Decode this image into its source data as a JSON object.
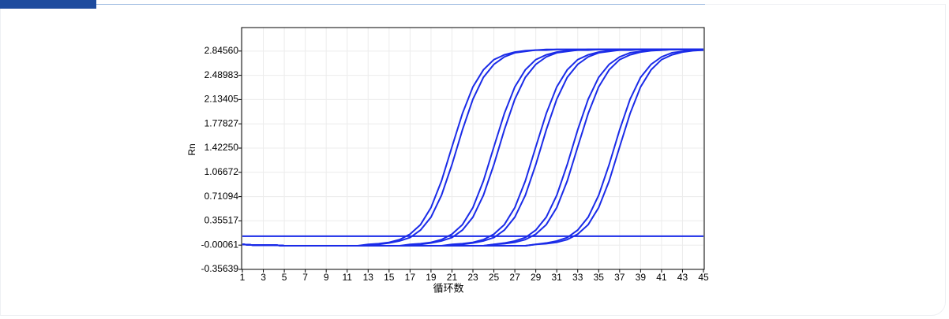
{
  "chart_data": {
    "type": "line",
    "y_label": "Rn",
    "x_label": "循环数",
    "color": "#1a2be8",
    "grid": true,
    "x": [
      1,
      2,
      3,
      4,
      5,
      6,
      7,
      8,
      9,
      10,
      11,
      12,
      13,
      14,
      15,
      16,
      17,
      18,
      19,
      20,
      21,
      22,
      23,
      24,
      25,
      26,
      27,
      28,
      29,
      30,
      31,
      32,
      33,
      34,
      35,
      36,
      37,
      38,
      39,
      40,
      41,
      42,
      43,
      44,
      45
    ],
    "xlim": [
      1,
      45
    ],
    "xticks": [
      1,
      3,
      5,
      7,
      9,
      11,
      13,
      15,
      17,
      19,
      21,
      23,
      25,
      27,
      29,
      31,
      33,
      35,
      37,
      39,
      41,
      43,
      45
    ],
    "ylim": [
      -0.35639,
      3.19
    ],
    "yticks": [
      -0.35639,
      -0.00061,
      0.35517,
      0.71094,
      1.06672,
      {
        "value": 1.4225,
        "label": "1.42250"
      },
      1.77827,
      2.13405,
      2.48983,
      {
        "value": 2.8456,
        "label": "2.84560"
      }
    ],
    "threshold": 0.13,
    "series": [
      {
        "values": [
          0.01,
          0,
          0,
          0,
          -0.01,
          -0.01,
          -0.01,
          -0.01,
          -0.01,
          -0.01,
          -0.01,
          -0.01,
          0.01,
          0.02,
          0.04,
          0.08,
          0.16,
          0.3,
          0.55,
          0.94,
          1.44,
          1.93,
          2.32,
          2.57,
          2.72,
          2.79,
          2.83,
          2.85,
          2.86,
          2.87,
          2.87,
          2.87,
          2.87,
          2.87,
          2.87,
          2.87,
          2.87,
          2.87,
          2.87,
          2.87,
          2.87,
          2.87,
          2.87,
          2.87,
          2.87
        ]
      },
      {
        "values": [
          0.01,
          0,
          0,
          0,
          -0.01,
          -0.01,
          -0.01,
          -0.01,
          -0.01,
          -0.01,
          -0.01,
          -0.01,
          -0.01,
          0.01,
          0.03,
          0.06,
          0.11,
          0.22,
          0.41,
          0.73,
          1.18,
          1.69,
          2.14,
          2.46,
          2.65,
          2.76,
          2.82,
          2.84,
          2.86,
          2.86,
          2.87,
          2.87,
          2.87,
          2.87,
          2.87,
          2.87,
          2.87,
          2.87,
          2.87,
          2.87,
          2.87,
          2.87,
          2.87,
          2.87,
          2.87
        ]
      },
      {
        "values": [
          0.01,
          0,
          0,
          0,
          -0.01,
          -0.01,
          -0.01,
          -0.01,
          -0.01,
          -0.01,
          -0.01,
          -0.01,
          -0.01,
          -0.01,
          -0.01,
          -0.01,
          0.01,
          0.02,
          0.04,
          0.08,
          0.16,
          0.3,
          0.55,
          0.94,
          1.44,
          1.93,
          2.32,
          2.57,
          2.72,
          2.79,
          2.83,
          2.85,
          2.86,
          2.87,
          2.87,
          2.87,
          2.87,
          2.87,
          2.87,
          2.87,
          2.87,
          2.87,
          2.87,
          2.87,
          2.87
        ]
      },
      {
        "values": [
          0.01,
          0,
          0,
          0,
          -0.01,
          -0.01,
          -0.01,
          -0.01,
          -0.01,
          -0.01,
          -0.01,
          -0.01,
          -0.01,
          -0.01,
          -0.01,
          -0.01,
          -0.01,
          0.01,
          0.03,
          0.06,
          0.11,
          0.22,
          0.41,
          0.73,
          1.18,
          1.69,
          2.14,
          2.46,
          2.65,
          2.76,
          2.82,
          2.84,
          2.86,
          2.86,
          2.87,
          2.87,
          2.87,
          2.87,
          2.87,
          2.87,
          2.87,
          2.87,
          2.87,
          2.87,
          2.87
        ]
      },
      {
        "values": [
          0.01,
          0,
          0,
          0,
          -0.01,
          -0.01,
          -0.01,
          -0.01,
          -0.01,
          -0.01,
          -0.01,
          -0.01,
          -0.01,
          -0.01,
          -0.01,
          -0.01,
          -0.01,
          -0.01,
          -0.01,
          -0.01,
          0.01,
          0.02,
          0.04,
          0.08,
          0.16,
          0.3,
          0.55,
          0.94,
          1.44,
          1.93,
          2.32,
          2.57,
          2.72,
          2.79,
          2.83,
          2.85,
          2.86,
          2.87,
          2.87,
          2.87,
          2.87,
          2.87,
          2.87,
          2.87,
          2.87
        ]
      },
      {
        "values": [
          0.01,
          0,
          0,
          0,
          -0.01,
          -0.01,
          -0.01,
          -0.01,
          -0.01,
          -0.01,
          -0.01,
          -0.01,
          -0.01,
          -0.01,
          -0.01,
          -0.01,
          -0.01,
          -0.01,
          -0.01,
          -0.01,
          -0.01,
          0.01,
          0.03,
          0.06,
          0.11,
          0.22,
          0.41,
          0.73,
          1.18,
          1.69,
          2.14,
          2.46,
          2.65,
          2.76,
          2.82,
          2.84,
          2.86,
          2.86,
          2.87,
          2.87,
          2.87,
          2.87,
          2.87,
          2.87,
          2.87
        ]
      },
      {
        "values": [
          0.01,
          0,
          0,
          0,
          -0.01,
          -0.01,
          -0.01,
          -0.01,
          -0.01,
          -0.01,
          -0.01,
          -0.01,
          -0.01,
          -0.01,
          -0.01,
          -0.01,
          -0.01,
          -0.01,
          -0.01,
          -0.01,
          -0.01,
          -0.01,
          -0.01,
          -0.01,
          0.01,
          0.03,
          0.06,
          0.11,
          0.22,
          0.41,
          0.73,
          1.18,
          1.69,
          2.14,
          2.46,
          2.65,
          2.76,
          2.82,
          2.84,
          2.86,
          2.86,
          2.87,
          2.87,
          2.87,
          2.87
        ]
      },
      {
        "values": [
          0.01,
          0,
          0,
          0,
          -0.01,
          -0.01,
          -0.01,
          -0.01,
          -0.01,
          -0.01,
          -0.01,
          -0.01,
          -0.01,
          -0.01,
          -0.01,
          -0.01,
          -0.01,
          -0.01,
          -0.01,
          -0.01,
          -0.01,
          -0.01,
          -0.01,
          -0.01,
          0.01,
          0.02,
          0.04,
          0.08,
          0.16,
          0.3,
          0.55,
          0.94,
          1.44,
          1.93,
          2.32,
          2.57,
          2.72,
          2.79,
          2.83,
          2.85,
          2.86,
          2.87,
          2.87,
          2.87,
          2.87
        ]
      },
      {
        "values": [
          0.01,
          0,
          0,
          0,
          -0.01,
          -0.01,
          -0.01,
          -0.01,
          -0.01,
          -0.01,
          -0.01,
          -0.01,
          -0.01,
          -0.01,
          -0.01,
          -0.01,
          -0.01,
          -0.01,
          -0.01,
          -0.01,
          -0.01,
          -0.01,
          -0.01,
          -0.01,
          -0.01,
          -0.01,
          -0.01,
          -0.01,
          0.01,
          0.03,
          0.06,
          0.11,
          0.22,
          0.41,
          0.73,
          1.18,
          1.69,
          2.14,
          2.46,
          2.65,
          2.76,
          2.82,
          2.84,
          2.86,
          2.86
        ]
      },
      {
        "values": [
          0.01,
          0,
          0,
          0,
          -0.01,
          -0.01,
          -0.01,
          -0.01,
          -0.01,
          -0.01,
          -0.01,
          -0.01,
          -0.01,
          -0.01,
          -0.01,
          -0.01,
          -0.01,
          -0.01,
          -0.01,
          -0.01,
          -0.01,
          -0.01,
          -0.01,
          -0.01,
          -0.01,
          -0.01,
          -0.01,
          -0.01,
          0.01,
          0.02,
          0.04,
          0.08,
          0.16,
          0.3,
          0.55,
          0.94,
          1.44,
          1.93,
          2.32,
          2.57,
          2.72,
          2.79,
          2.83,
          2.85,
          2.86
        ]
      }
    ]
  }
}
